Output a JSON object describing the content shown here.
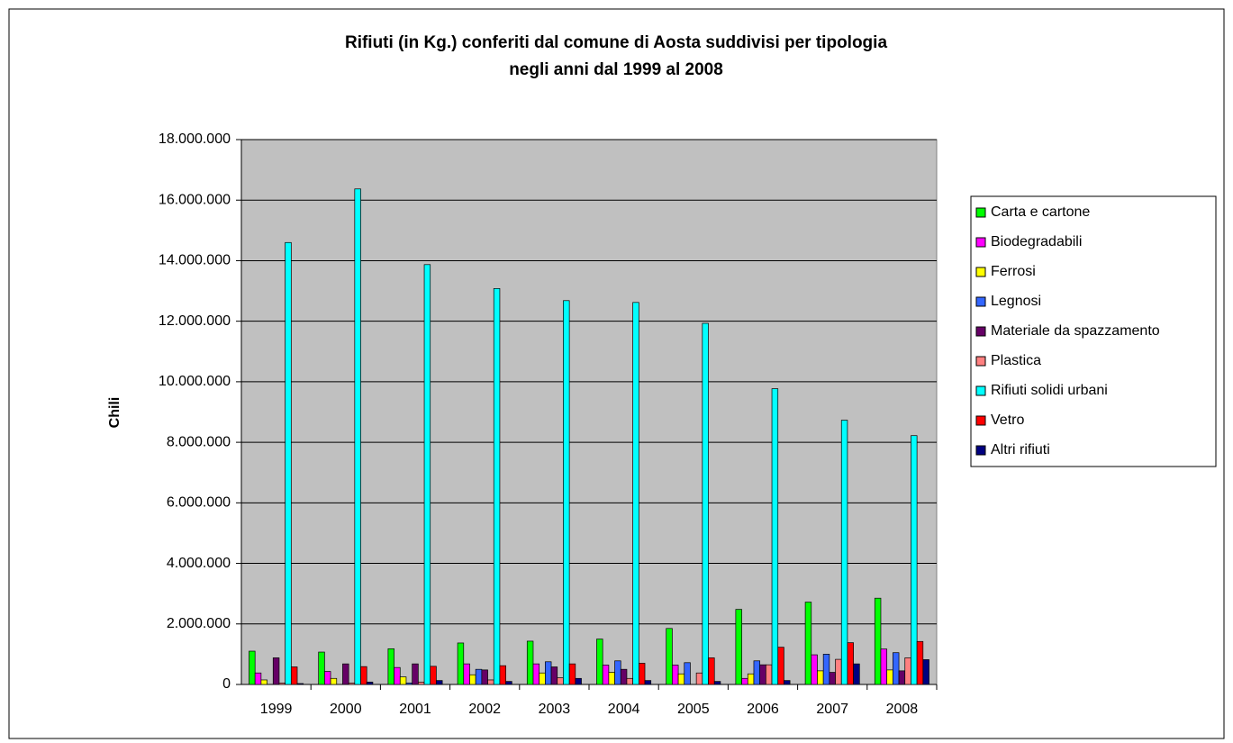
{
  "chart_data": {
    "type": "bar",
    "title": [
      "Rifiuti (in Kg.) conferiti dal comune di Aosta suddivisi per tipologia",
      "negli anni dal 1999 al 2008"
    ],
    "y_label": "Chili",
    "categories": [
      "1999",
      "2000",
      "2001",
      "2002",
      "2003",
      "2004",
      "2005",
      "2006",
      "2007",
      "2008"
    ],
    "series": [
      {
        "name": "Carta e cartone",
        "color": "#00ff00",
        "values": [
          1100000,
          1070000,
          1180000,
          1370000,
          1430000,
          1500000,
          1850000,
          2480000,
          2720000,
          2850000
        ]
      },
      {
        "name": "Biodegradabili",
        "color": "#ff00ff",
        "values": [
          380000,
          430000,
          560000,
          680000,
          680000,
          640000,
          640000,
          200000,
          980000,
          1170000
        ]
      },
      {
        "name": "Ferrosi",
        "color": "#ffff00",
        "values": [
          150000,
          200000,
          250000,
          320000,
          380000,
          400000,
          350000,
          350000,
          450000,
          480000
        ]
      },
      {
        "name": "Legnosi",
        "color": "#3366ff",
        "values": [
          0,
          0,
          50000,
          500000,
          750000,
          780000,
          720000,
          780000,
          1000000,
          1050000
        ]
      },
      {
        "name": "Materiale da spazzamento",
        "color": "#660066",
        "values": [
          880000,
          680000,
          680000,
          480000,
          580000,
          500000,
          0,
          650000,
          400000,
          450000
        ]
      },
      {
        "name": "Plastica",
        "color": "#ff8080",
        "values": [
          50000,
          50000,
          80000,
          150000,
          220000,
          200000,
          380000,
          650000,
          830000,
          880000
        ]
      },
      {
        "name": "Rifiuti solidi urbani",
        "color": "#00ffff",
        "values": [
          14600000,
          16370000,
          13870000,
          13080000,
          12680000,
          12620000,
          11930000,
          9770000,
          8730000,
          8220000
        ]
      },
      {
        "name": "Vetro",
        "color": "#ff0000",
        "values": [
          580000,
          590000,
          600000,
          620000,
          680000,
          700000,
          880000,
          1230000,
          1380000,
          1420000
        ]
      },
      {
        "name": "Altri rifiuti",
        "color": "#000080",
        "values": [
          30000,
          80000,
          130000,
          100000,
          200000,
          130000,
          100000,
          130000,
          680000,
          820000
        ]
      }
    ],
    "ylim": [
      0,
      18000000
    ],
    "yticks": [
      0,
      {
        "value": 2000000,
        "label": "2.000.000"
      },
      {
        "value": 4000000,
        "label": "4.000.000"
      },
      {
        "value": 6000000,
        "label": "6.000.000"
      },
      {
        "value": 8000000,
        "label": "8.000.000"
      },
      {
        "value": 10000000,
        "label": "10.000.000"
      },
      {
        "value": 12000000,
        "label": "12.000.000"
      },
      {
        "value": 14000000,
        "label": "14.000.000"
      },
      {
        "value": 16000000,
        "label": "16.000.000"
      },
      {
        "value": 18000000,
        "label": "18.000.000"
      }
    ],
    "grid": true,
    "legend": "right",
    "plot_background": "#c0c0c0"
  }
}
